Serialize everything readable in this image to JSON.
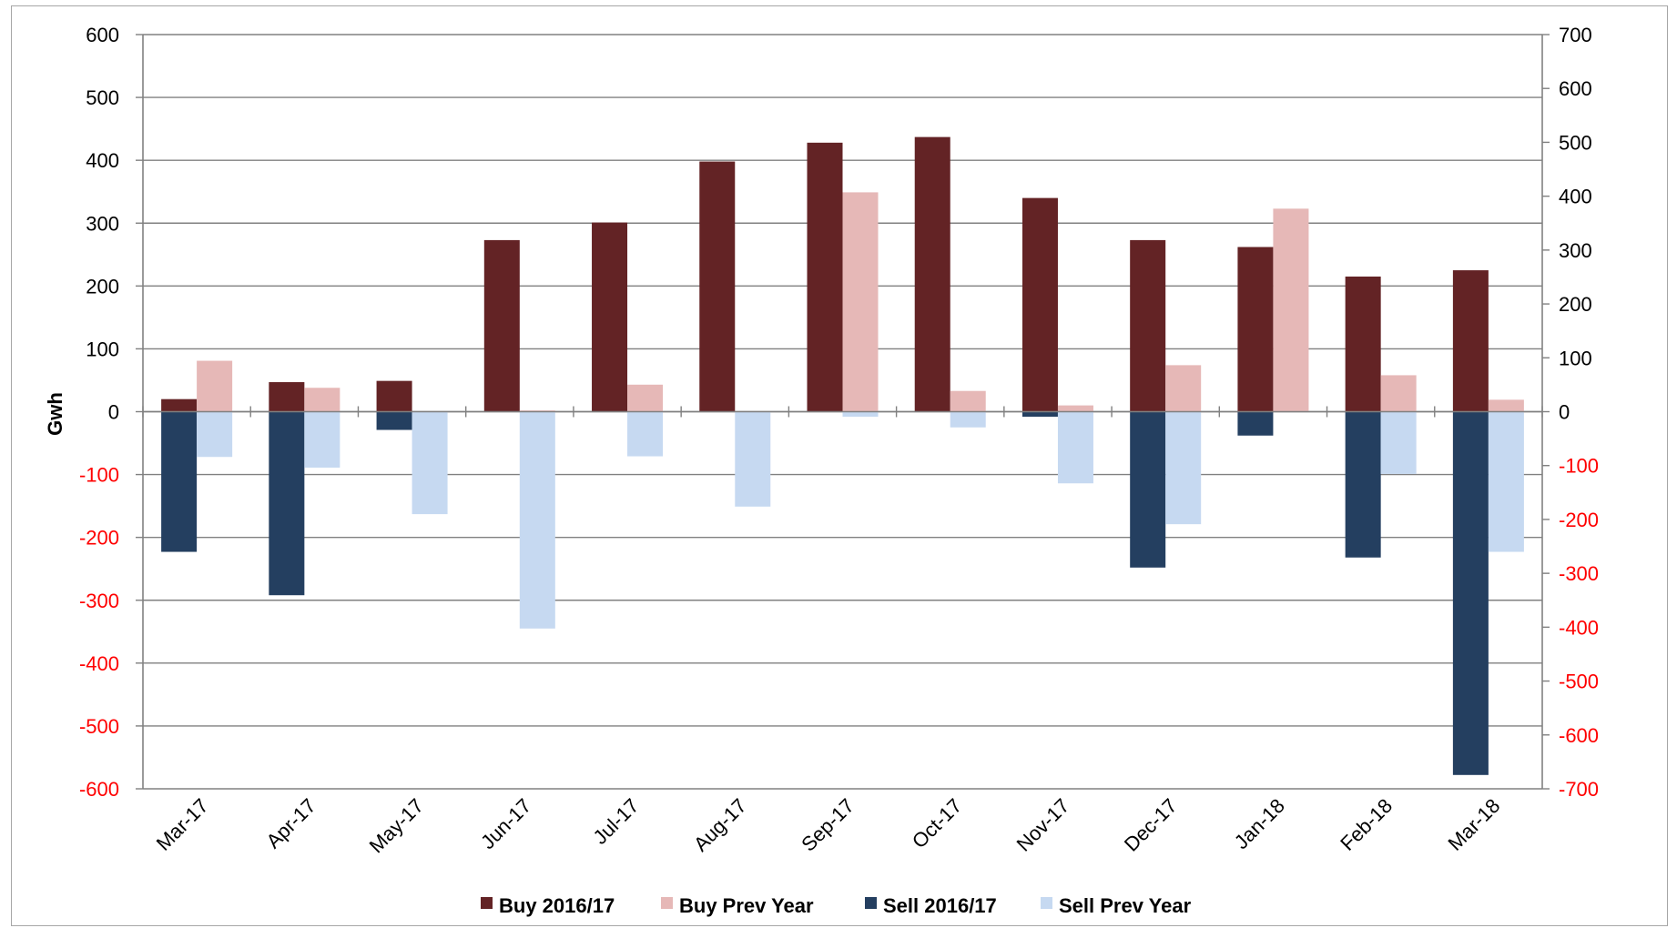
{
  "chart_data": {
    "type": "bar",
    "categories": [
      "Mar-17",
      "Apr-17",
      "May-17",
      "Jun-17",
      "Jul-17",
      "Aug-17",
      "Sep-17",
      "Oct-17",
      "Nov-17",
      "Dec-17",
      "Jan-18",
      "Feb-18",
      "Mar-18"
    ],
    "series": [
      {
        "name": "Buy 2016/17",
        "axis": "left",
        "color": "#632325",
        "values": [
          20,
          47,
          49,
          273,
          301,
          398,
          428,
          437,
          340,
          273,
          262,
          215,
          225
        ]
      },
      {
        "name": "Buy Prev Year",
        "axis": "left",
        "color": "#e6b8b7",
        "values": [
          81,
          38,
          0,
          2,
          43,
          0,
          349,
          33,
          10,
          74,
          323,
          58,
          19
        ]
      },
      {
        "name": "Sell 2016/17",
        "axis": "left",
        "color": "#243f60",
        "values": [
          -223,
          -292,
          -29,
          0,
          0,
          0,
          0,
          0,
          -8,
          -248,
          -38,
          -232,
          -578
        ]
      },
      {
        "name": "Sell Prev Year",
        "axis": "left",
        "color": "#c6d9f1",
        "values": [
          -72,
          -89,
          -163,
          -345,
          -71,
          -151,
          -8,
          -25,
          -114,
          -179,
          0,
          -99,
          -223
        ]
      }
    ],
    "ylabel": "Gwh",
    "ylim": [
      -600,
      600
    ],
    "y_ticks": [
      "600",
      "500",
      "400",
      "300",
      "200",
      "100",
      "0",
      "-100",
      "-200",
      "-300",
      "-400",
      "-500",
      "-600"
    ],
    "y2lim": [
      -700,
      700
    ],
    "y2_ticks": [
      "700",
      "600",
      "500",
      "400",
      "300",
      "200",
      "100",
      "0",
      "-100",
      "-200",
      "-300",
      "-400",
      "-500",
      "-600",
      "-700"
    ],
    "grid": true,
    "legend": "bottom",
    "colors": {
      "positive_tick": "#000000",
      "negative_tick": "#ff0000",
      "grid": "#808080"
    }
  }
}
